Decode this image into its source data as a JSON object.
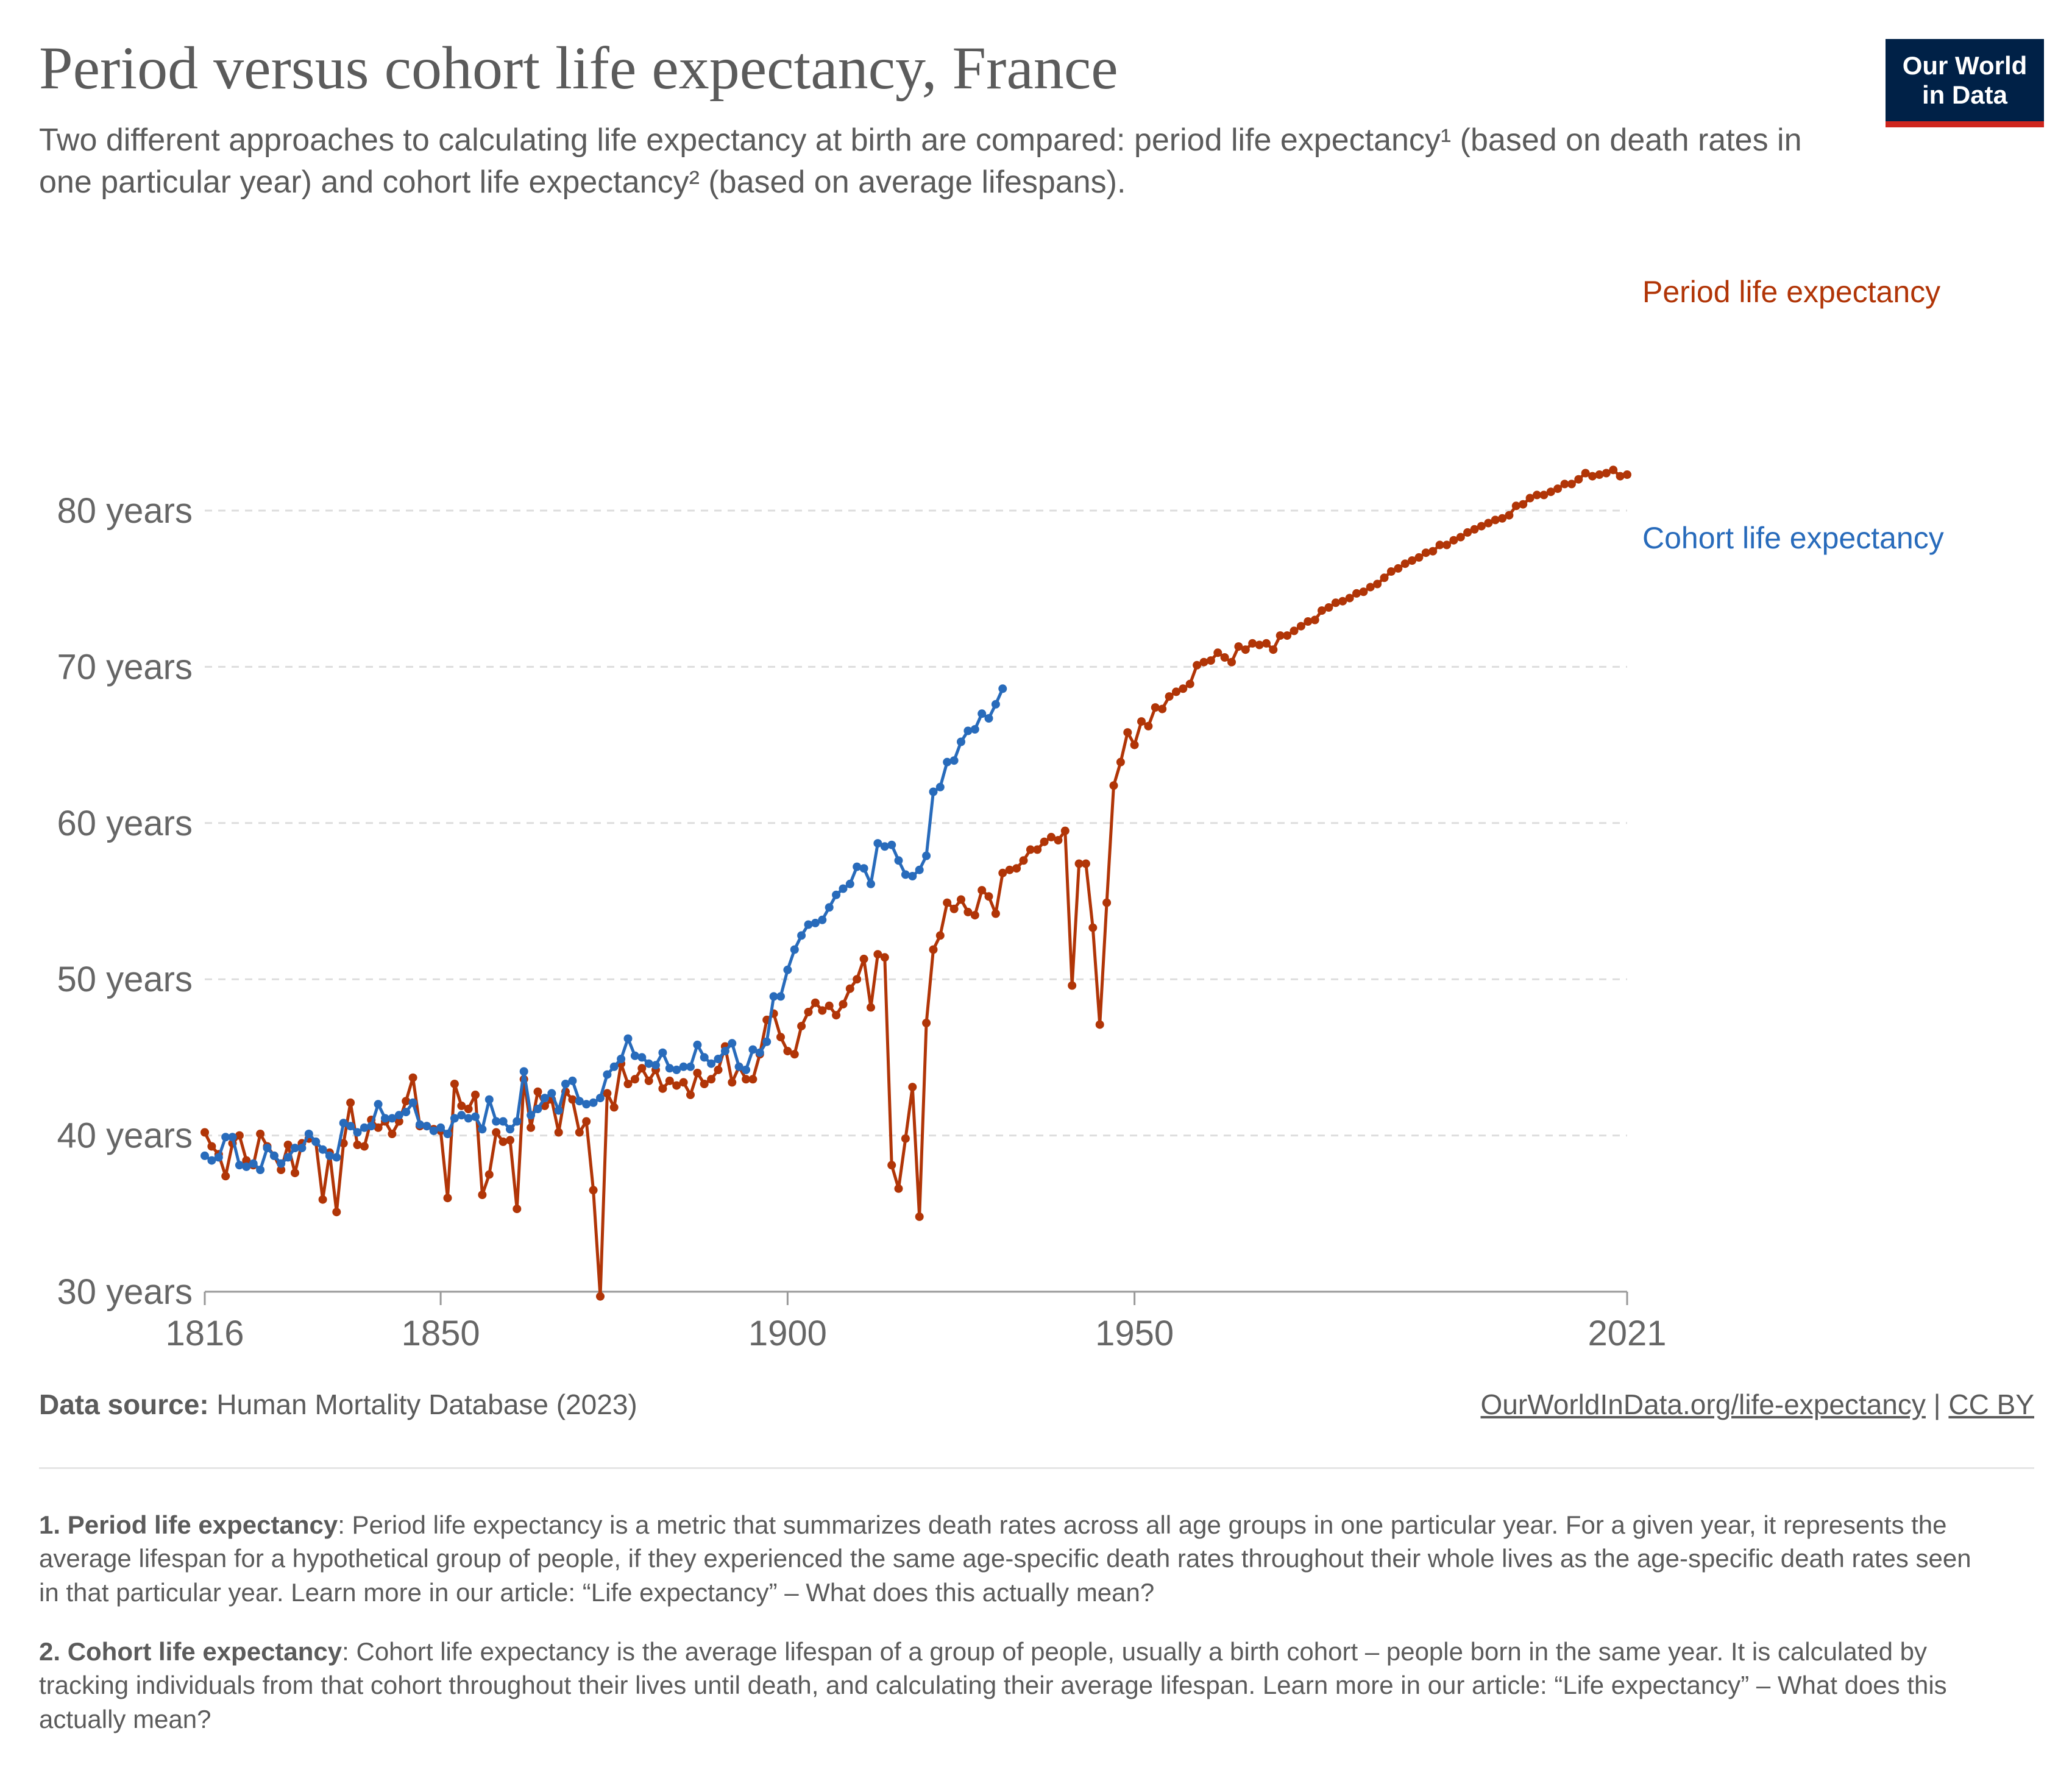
{
  "header": {
    "title": "Period versus cohort life expectancy, France",
    "subtitle": "Two different approaches to calculating life expectancy at birth are compared: period life expectancy¹ (based on death rates in one particular year) and cohort life expectancy² (based on average lifespans).",
    "logo_line1": "Our World",
    "logo_line2": "in Data",
    "logo_bg": "#002147",
    "logo_accent": "#ce261e"
  },
  "chart_data": {
    "type": "line",
    "title": "Period versus cohort life expectancy, France",
    "xlim": [
      1816,
      2021
    ],
    "ylim": [
      30,
      83
    ],
    "y_ticks": [
      {
        "value": 30,
        "label": "30 years"
      },
      {
        "value": 40,
        "label": "40 years"
      },
      {
        "value": 50,
        "label": "50 years"
      },
      {
        "value": 60,
        "label": "60 years"
      },
      {
        "value": 70,
        "label": "70 years"
      },
      {
        "value": 80,
        "label": "80 years"
      }
    ],
    "x_ticks": [
      {
        "value": 1816,
        "label": "1816"
      },
      {
        "value": 1850,
        "label": "1850"
      },
      {
        "value": 1900,
        "label": "1900"
      },
      {
        "value": 1950,
        "label": "1950"
      },
      {
        "value": 2021,
        "label": "2021"
      }
    ],
    "grid": "horizontal dashed",
    "legend": "inline right end of lines",
    "series": [
      {
        "name": "Period life expectancy",
        "color": "#b13507",
        "x_start": 1816,
        "values": [
          40.2,
          39.3,
          38.8,
          37.4,
          39.5,
          40.0,
          38.4,
          38.1,
          40.1,
          39.3,
          38.7,
          37.8,
          39.4,
          37.6,
          39.5,
          39.8,
          39.6,
          35.9,
          38.9,
          35.1,
          39.5,
          42.1,
          39.4,
          39.3,
          41.0,
          40.5,
          40.9,
          40.1,
          40.9,
          42.2,
          43.7,
          40.6,
          40.6,
          40.4,
          40.3,
          36.0,
          43.3,
          41.9,
          41.7,
          42.6,
          36.2,
          37.5,
          40.2,
          39.6,
          39.7,
          35.3,
          43.6,
          40.5,
          42.8,
          41.9,
          42.3,
          40.2,
          42.8,
          42.3,
          40.2,
          40.9,
          36.5,
          29.7,
          42.7,
          41.8,
          44.6,
          43.3,
          43.6,
          44.3,
          43.5,
          44.2,
          43.0,
          43.5,
          43.2,
          43.4,
          42.6,
          44.0,
          43.3,
          43.6,
          44.2,
          45.7,
          43.4,
          44.4,
          43.6,
          43.6,
          45.2,
          47.4,
          47.8,
          46.3,
          45.4,
          45.2,
          47.0,
          47.9,
          48.5,
          48.0,
          48.3,
          47.7,
          48.4,
          49.4,
          50.0,
          51.3,
          48.2,
          51.6,
          51.4,
          38.1,
          36.6,
          39.8,
          43.1,
          34.8,
          47.2,
          51.9,
          52.8,
          54.9,
          54.5,
          55.1,
          54.3,
          54.1,
          55.7,
          55.3,
          54.2,
          56.8,
          57.0,
          57.1,
          57.6,
          58.3,
          58.3,
          58.8,
          59.1,
          58.9,
          59.5,
          49.6,
          57.4,
          57.4,
          53.3,
          47.1,
          54.9,
          62.4,
          63.9,
          65.8,
          65.0,
          66.5,
          66.2,
          67.4,
          67.3,
          68.1,
          68.4,
          68.6,
          68.9,
          70.1,
          70.3,
          70.4,
          70.9,
          70.6,
          70.3,
          71.3,
          71.1,
          71.5,
          71.4,
          71.5,
          71.1,
          72.0,
          72.0,
          72.3,
          72.6,
          72.9,
          73.0,
          73.6,
          73.8,
          74.1,
          74.2,
          74.4,
          74.7,
          74.8,
          75.1,
          75.3,
          75.7,
          76.1,
          76.3,
          76.6,
          76.8,
          77.0,
          77.3,
          77.4,
          77.8,
          77.8,
          78.1,
          78.3,
          78.6,
          78.8,
          79.0,
          79.2,
          79.4,
          79.5,
          79.7,
          80.3,
          80.4,
          80.8,
          81.0,
          81.0,
          81.2,
          81.4,
          81.7,
          81.7,
          82.0,
          82.4,
          82.2,
          82.3,
          82.4,
          82.6,
          82.2,
          82.3
        ]
      },
      {
        "name": "Cohort life expectancy",
        "color": "#286bbb",
        "x_start": 1816,
        "values": [
          38.7,
          38.4,
          38.6,
          39.9,
          39.9,
          38.1,
          38.0,
          38.2,
          37.8,
          39.2,
          38.7,
          38.2,
          38.6,
          39.2,
          39.2,
          40.1,
          39.6,
          39.1,
          38.7,
          38.6,
          40.8,
          40.6,
          40.2,
          40.5,
          40.6,
          42.0,
          41.1,
          41.1,
          41.3,
          41.5,
          42.1,
          40.7,
          40.6,
          40.3,
          40.5,
          40.1,
          41.1,
          41.3,
          41.1,
          41.2,
          40.4,
          42.3,
          40.9,
          40.9,
          40.4,
          40.9,
          44.1,
          41.3,
          41.7,
          42.4,
          42.7,
          41.6,
          43.3,
          43.5,
          42.2,
          42.0,
          42.1,
          42.4,
          43.9,
          44.4,
          44.9,
          46.2,
          45.1,
          45.0,
          44.6,
          44.5,
          45.3,
          44.3,
          44.2,
          44.4,
          44.4,
          45.8,
          45.0,
          44.6,
          44.9,
          45.4,
          45.9,
          44.4,
          44.2,
          45.5,
          45.3,
          46.0,
          48.9,
          48.9,
          50.6,
          51.9,
          52.8,
          53.5,
          53.6,
          53.8,
          54.6,
          55.4,
          55.8,
          56.1,
          57.2,
          57.1,
          56.1,
          58.7,
          58.5,
          58.6,
          57.6,
          56.7,
          56.6,
          57.0,
          57.9,
          62.0,
          62.3,
          63.9,
          64.0,
          65.2,
          65.9,
          66.0,
          67.0,
          66.7,
          67.6,
          68.6
        ]
      }
    ]
  },
  "footer": {
    "source_label": "Data source:",
    "source_text": " Human Mortality Database (2023)",
    "url": "OurWorldInData.org/life-expectancy",
    "separator": " | ",
    "license": "CC BY",
    "note1_label": "1. Period life expectancy",
    "note1_text": ": Period life expectancy is a metric that summarizes death rates across all age groups in one particular year. For a given year, it represents the average lifespan for a hypothetical group of people, if they experienced the same age-specific death rates throughout their whole lives as the age-specific death rates seen in that particular year. Learn more in our article: “Life expectancy” – What does this actually mean?",
    "note2_label": "2. Cohort life expectancy",
    "note2_text": ": Cohort life expectancy is the average lifespan of a group of people, usually a birth cohort – people born in the same year. It is calculated by tracking individuals from that cohort throughout their lives until death, and calculating their average lifespan. Learn more in our article: “Life expectancy” – What does this actually mean?"
  }
}
